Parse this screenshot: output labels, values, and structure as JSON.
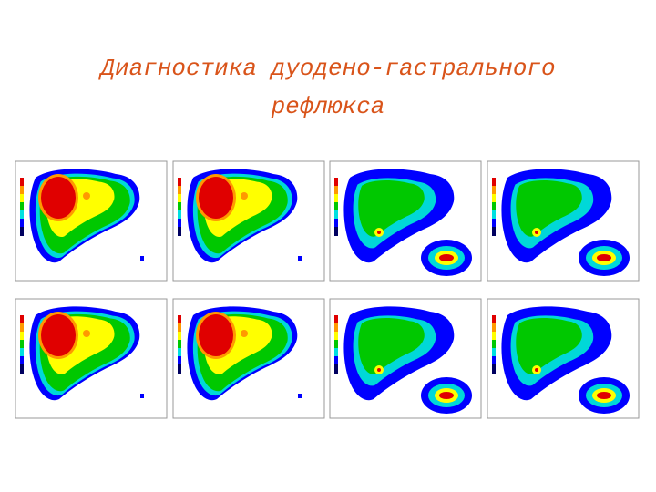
{
  "header": {
    "title_lines": [
      "Диагностика дуодено-гастрального",
      "рефлюкса"
    ]
  }
}
